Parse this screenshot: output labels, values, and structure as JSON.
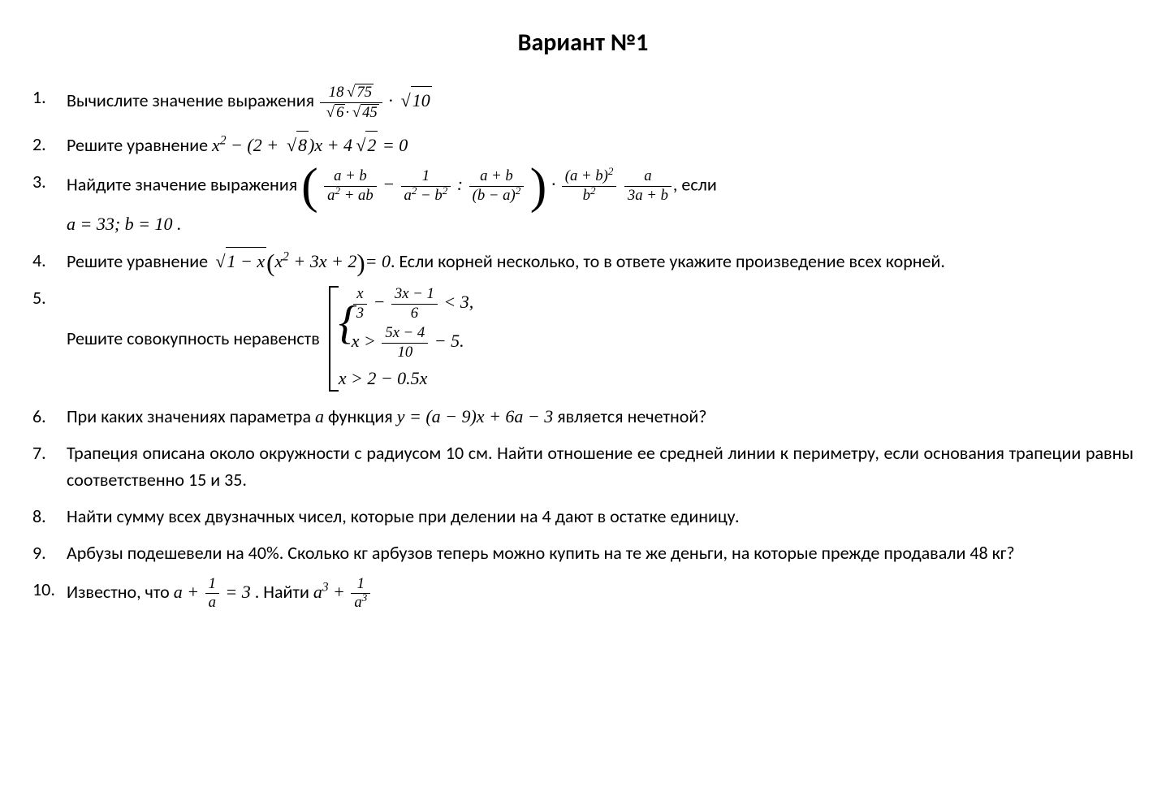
{
  "title": "Вариант №1",
  "problems": {
    "p1": {
      "text_before": "Вычислите значение выражения ",
      "frac1_num_coef": "18",
      "frac1_num_rad": "75",
      "frac1_den_rad1": "6",
      "frac1_den_rad2": "45",
      "mult_rad": "10"
    },
    "p2": {
      "text_before": "Решите уравнение  ",
      "eq_part1": "x",
      "eq_exp1": "2",
      "eq_part2": " − (2 + ",
      "eq_rad1": "8",
      "eq_part3": ")x + 4",
      "eq_rad2": "2",
      "eq_part4": " = 0"
    },
    "p3": {
      "text_before": "Найдите значение выражения   ",
      "f1_num": "a + b",
      "f1_den": "a",
      "f1_den_exp": "2",
      "f1_den2": " + ab",
      "f2_num": "1",
      "f2_den": "a",
      "f2_den_exp1": "2",
      "f2_den_mid": " − b",
      "f2_den_exp2": "2",
      "f3_num": "a + b",
      "f3_den_base": "(b − a)",
      "f3_den_exp": "2",
      "f4_num_base": "(a + b)",
      "f4_num_exp": "2",
      "f4_den": "b",
      "f4_den_exp": "2",
      "f5_num": "a",
      "f5_den": "3a + b",
      "text_after": ", если",
      "values": "a = 33; b = 10 ."
    },
    "p4": {
      "text_before": "Решите уравнение  ",
      "rad": "1 − x",
      "paren_content1": "x",
      "paren_exp": "2",
      "paren_content2": " + 3x + 2",
      "eq_end": "= 0",
      "text_after": ". Если корней несколько, то в ответе укажите произведение всех корней."
    },
    "p5": {
      "text_before": "Решите совокупность неравенств ",
      "line1_f1_num": "x",
      "line1_f1_den": "3",
      "line1_mid": " − ",
      "line1_f2_num": "3x − 1",
      "line1_f2_den": "6",
      "line1_end": " < 3,",
      "line2_start": "x > ",
      "line2_f_num": "5x − 4",
      "line2_f_den": "10",
      "line2_end": " − 5.",
      "line3": "x > 2 − 0.5x"
    },
    "p6": {
      "text_before": "При каких значениях параметра ",
      "var1": "a",
      "text_mid": " функция  ",
      "eq": "y = (a − 9)x + 6a − 3",
      "text_after": "  является нечетной?"
    },
    "p7": {
      "text": "Трапеция описана около окружности с радиусом 10 см. Найти отношение ее средней линии к периметру, если основания трапеции равны соответственно 15 и 35."
    },
    "p8": {
      "text": "Найти сумму всех двузначных чисел, которые при делении на 4 дают в остатке единицу."
    },
    "p9": {
      "text": "Арбузы подешевели на 40%. Сколько кг арбузов теперь можно купить на те же деньги, на которые прежде продавали 48 кг?"
    },
    "p10": {
      "text_before": "Известно, что  ",
      "eq1_lhs": "a + ",
      "eq1_f_num": "1",
      "eq1_f_den": "a",
      "eq1_rhs": " = 3",
      "text_mid": " . Найти  ",
      "eq2_lhs": "a",
      "eq2_exp1": "3",
      "eq2_mid": " + ",
      "eq2_f_num": "1",
      "eq2_f_den_base": "a",
      "eq2_f_den_exp": "3"
    }
  }
}
